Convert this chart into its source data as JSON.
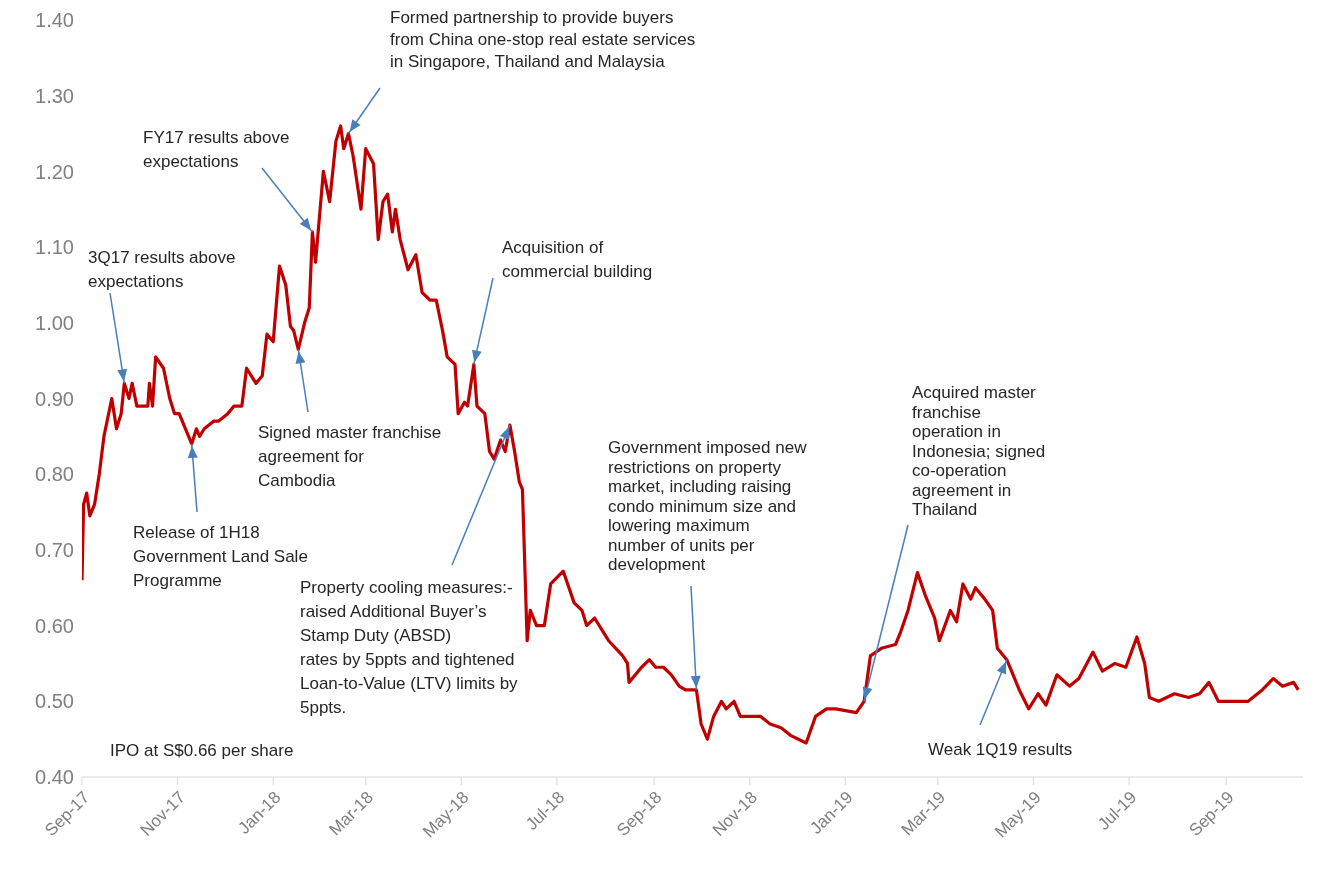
{
  "chart_data": {
    "type": "line",
    "color": "#c00000",
    "x": [
      "2017-09-01",
      "2017-09-02",
      "2017-09-04",
      "2017-09-06",
      "2017-09-09",
      "2017-09-12",
      "2017-09-15",
      "2017-09-20",
      "2017-09-23",
      "2017-09-26",
      "2017-09-28",
      "2017-10-01",
      "2017-10-03",
      "2017-10-06",
      "2017-10-13",
      "2017-10-14",
      "2017-10-16",
      "2017-10-18",
      "2017-10-23",
      "2017-10-27",
      "2017-10-30",
      "2017-11-02",
      "2017-11-06",
      "2017-11-10",
      "2017-11-13",
      "2017-11-15",
      "2017-11-18",
      "2017-11-24",
      "2017-11-27",
      "2017-12-03",
      "2017-12-07",
      "2017-12-12",
      "2017-12-15",
      "2017-12-21",
      "2017-12-25",
      "2017-12-28",
      "2018-01-01",
      "2018-01-05",
      "2018-01-09",
      "2018-01-12",
      "2018-01-14",
      "2018-01-17",
      "2018-01-21",
      "2018-01-24",
      "2018-01-26",
      "2018-01-28",
      "2018-02-02",
      "2018-02-06",
      "2018-02-10",
      "2018-02-13",
      "2018-02-15",
      "2018-02-18",
      "2018-02-21",
      "2018-02-26",
      "2018-03-01",
      "2018-03-06",
      "2018-03-09",
      "2018-03-12",
      "2018-03-15",
      "2018-03-18",
      "2018-03-20",
      "2018-03-23",
      "2018-03-28",
      "2018-04-02",
      "2018-04-06",
      "2018-04-11",
      "2018-04-15",
      "2018-04-19",
      "2018-04-22",
      "2018-04-27",
      "2018-04-29",
      "2018-05-03",
      "2018-05-05",
      "2018-05-09",
      "2018-05-11",
      "2018-05-16",
      "2018-05-19",
      "2018-05-22",
      "2018-05-26",
      "2018-05-29",
      "2018-06-01",
      "2018-06-04",
      "2018-06-07",
      "2018-06-09",
      "2018-06-12",
      "2018-06-14",
      "2018-06-18",
      "2018-06-23",
      "2018-06-27",
      "2018-07-05",
      "2018-07-12",
      "2018-07-17",
      "2018-07-20",
      "2018-07-25",
      "2018-07-31",
      "2018-08-03",
      "2018-08-12",
      "2018-08-15",
      "2018-08-16",
      "2018-08-24",
      "2018-08-29",
      "2018-09-02",
      "2018-09-07",
      "2018-09-12",
      "2018-09-17",
      "2018-09-21",
      "2018-09-28",
      "2018-10-01",
      "2018-10-05",
      "2018-10-09",
      "2018-10-14",
      "2018-10-17",
      "2018-10-22",
      "2018-10-26",
      "2018-11-02",
      "2018-11-08",
      "2018-11-14",
      "2018-11-21",
      "2018-11-27",
      "2018-12-07",
      "2018-12-13",
      "2018-12-20",
      "2018-12-26",
      "2019-01-08",
      "2019-01-13",
      "2019-01-17",
      "2019-01-24",
      "2019-02-02",
      "2019-02-05",
      "2019-02-10",
      "2019-02-16",
      "2019-02-21",
      "2019-02-27",
      "2019-03-02",
      "2019-03-09",
      "2019-03-13",
      "2019-03-17",
      "2019-03-22",
      "2019-03-25",
      "2019-03-31",
      "2019-04-05",
      "2019-04-08",
      "2019-04-14",
      "2019-04-22",
      "2019-04-28",
      "2019-05-04",
      "2019-05-09",
      "2019-05-16",
      "2019-05-24",
      "2019-05-30",
      "2019-06-08",
      "2019-06-14",
      "2019-06-22",
      "2019-06-29",
      "2019-07-06",
      "2019-07-11",
      "2019-07-14",
      "2019-07-20",
      "2019-07-30",
      "2019-08-08",
      "2019-08-15",
      "2019-08-21",
      "2019-08-27",
      "2019-09-15",
      "2019-09-24",
      "2019-10-01",
      "2019-10-07",
      "2019-10-14",
      "2019-10-17"
    ],
    "values": [
      0.66,
      0.76,
      0.775,
      0.745,
      0.76,
      0.8,
      0.85,
      0.9,
      0.86,
      0.88,
      0.92,
      0.9,
      0.92,
      0.89,
      0.89,
      0.92,
      0.89,
      0.955,
      0.94,
      0.9,
      0.88,
      0.88,
      0.86,
      0.84,
      0.86,
      0.85,
      0.86,
      0.87,
      0.87,
      0.88,
      0.89,
      0.89,
      0.94,
      0.92,
      0.93,
      0.985,
      0.975,
      1.075,
      1.05,
      0.995,
      0.99,
      0.965,
      1.0,
      1.02,
      1.12,
      1.08,
      1.2,
      1.16,
      1.24,
      1.26,
      1.23,
      1.25,
      1.22,
      1.15,
      1.23,
      1.21,
      1.11,
      1.16,
      1.17,
      1.12,
      1.15,
      1.11,
      1.07,
      1.09,
      1.04,
      1.03,
      1.03,
      0.99,
      0.955,
      0.945,
      0.88,
      0.895,
      0.89,
      0.945,
      0.89,
      0.88,
      0.83,
      0.82,
      0.845,
      0.83,
      0.865,
      0.83,
      0.79,
      0.78,
      0.58,
      0.62,
      0.6,
      0.6,
      0.655,
      0.672,
      0.63,
      0.62,
      0.6,
      0.61,
      0.59,
      0.58,
      0.56,
      0.55,
      0.525,
      0.545,
      0.555,
      0.545,
      0.545,
      0.535,
      0.52,
      0.515,
      0.515,
      0.47,
      0.45,
      0.48,
      0.5,
      0.49,
      0.5,
      0.48,
      0.48,
      0.48,
      0.47,
      0.465,
      0.455,
      0.445,
      0.48,
      0.49,
      0.49,
      0.485,
      0.5,
      0.56,
      0.57,
      0.575,
      0.59,
      0.62,
      0.67,
      0.64,
      0.61,
      0.58,
      0.62,
      0.605,
      0.655,
      0.635,
      0.65,
      0.635,
      0.62,
      0.57,
      0.555,
      0.515,
      0.49,
      0.51,
      0.495,
      0.535,
      0.52,
      0.53,
      0.565,
      0.54,
      0.55,
      0.545,
      0.585,
      0.55,
      0.505,
      0.5,
      0.51,
      0.505,
      0.51,
      0.525,
      0.5,
      0.5,
      0.515,
      0.53,
      0.52,
      0.525,
      0.515
    ],
    "xlim": [
      "2017-09-01",
      "2019-10-20"
    ],
    "xticks": [
      {
        "value": "2017-09-01",
        "label": "Sep-17"
      },
      {
        "value": "2017-11-01",
        "label": "Nov-17"
      },
      {
        "value": "2018-01-01",
        "label": "Jan-18"
      },
      {
        "value": "2018-03-01",
        "label": "Mar-18"
      },
      {
        "value": "2018-05-01",
        "label": "May-18"
      },
      {
        "value": "2018-07-01",
        "label": "Jul-18"
      },
      {
        "value": "2018-09-01",
        "label": "Sep-18"
      },
      {
        "value": "2018-11-01",
        "label": "Nov-18"
      },
      {
        "value": "2019-01-01",
        "label": "Jan-19"
      },
      {
        "value": "2019-03-01",
        "label": "Mar-19"
      },
      {
        "value": "2019-05-01",
        "label": "May-19"
      },
      {
        "value": "2019-07-01",
        "label": "Jul-19"
      },
      {
        "value": "2019-09-01",
        "label": "Sep-19"
      }
    ],
    "ylim": [
      0.4,
      1.4
    ],
    "yticks": [
      {
        "value": 0.4,
        "label": "0.40"
      },
      {
        "value": 0.5,
        "label": "0.50"
      },
      {
        "value": 0.6,
        "label": "0.60"
      },
      {
        "value": 0.7,
        "label": "0.70"
      },
      {
        "value": 0.8,
        "label": "0.80"
      },
      {
        "value": 0.9,
        "label": "0.90"
      },
      {
        "value": 1.0,
        "label": "1.00"
      },
      {
        "value": 1.1,
        "label": "1.10"
      },
      {
        "value": 1.2,
        "label": "1.20"
      },
      {
        "value": 1.3,
        "label": "1.30"
      },
      {
        "value": 1.4,
        "label": "1.40"
      }
    ],
    "annotations": [
      "IPO at S$0.66 per share",
      {
        "text": "3Q17 results above\nexpectations",
        "x": "2017-09-28",
        "y": 0.92
      },
      {
        "text": "Release of 1H18\nGovernment Land Sale\nProgramme",
        "x": "2017-11-10",
        "y": 0.84
      },
      {
        "text": "Signed master franchise\nagreement for\nCambodia",
        "x": "2018-01-17",
        "y": 0.965
      },
      {
        "text": "FY17 results above\nexpectations",
        "x": "2018-01-26",
        "y": 1.12
      },
      {
        "text": "Formed partnership to provide buyers\nfrom China one-stop real estate services\nin Singapore, Thailand and Malaysia",
        "x": "2018-02-18",
        "y": 1.25
      },
      {
        "text": "Acquisition of\ncommercial building",
        "x": "2018-05-09",
        "y": 0.945
      },
      {
        "text": "Property cooling measures:-\nraised Additional Buyer’s\nStamp Duty (ABSD)\nrates by 5ppts and tightened\nLoan-to-Value (LTV) limits by\n5ppts.",
        "x": "2018-06-01",
        "y": 0.865
      },
      {
        "text": "Government imposed new\nrestrictions on property\nmarket, including raising\ncondo minimum size and\nlowering maximum\nnumber of units per\ndevelopment",
        "x": "2018-09-28",
        "y": 0.515
      },
      {
        "text": "Acquired master\nfranchise\noperation in\nIndonesia; signed\nco-operation\nagreement in\nThailand",
        "x": "2019-01-13",
        "y": 0.5
      },
      {
        "text": "Weak 1Q19 results",
        "x": "2019-04-14",
        "y": 0.555
      }
    ]
  }
}
